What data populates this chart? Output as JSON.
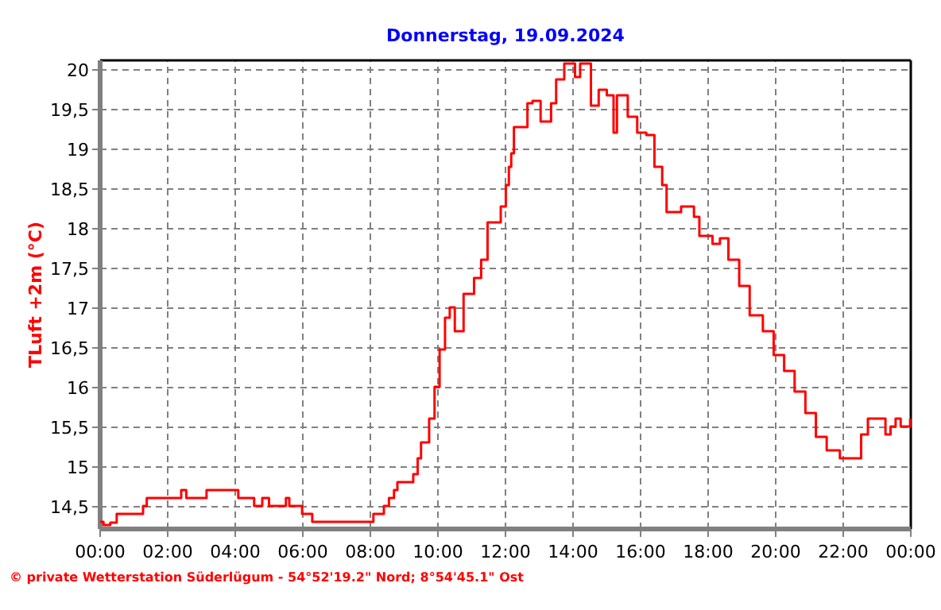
{
  "chart_data": {
    "type": "step",
    "title": "Donnerstag, 19.09.2024",
    "ylabel": "TLuft +2m  (°C)",
    "annotations": [
      "© private Wetterstation Süderlügum - 54°52'19.2\" Nord; 8°54'45.1\" Ost"
    ],
    "x": [
      0,
      0.1,
      0.3,
      0.49,
      1.27,
      1.38,
      2.4,
      2.55,
      3.15,
      4.09,
      4.56,
      4.8,
      5.0,
      5.5,
      5.6,
      5.98,
      6.28,
      8.09,
      8.4,
      8.55,
      8.7,
      8.8,
      9.27,
      9.4,
      9.5,
      9.74,
      9.9,
      10.05,
      10.21,
      10.35,
      10.5,
      10.76,
      11.07,
      11.28,
      11.47,
      11.86,
      12.01,
      12.1,
      12.17,
      12.25,
      12.65,
      12.8,
      13.04,
      13.35,
      13.5,
      13.74,
      14.06,
      14.21,
      14.53,
      14.76,
      15.0,
      15.2,
      15.3,
      15.62,
      15.9,
      16.17,
      16.41,
      16.64,
      16.77,
      17.2,
      17.58,
      17.74,
      18.13,
      18.35,
      18.6,
      18.92,
      19.23,
      19.62,
      19.94,
      20.25,
      20.56,
      20.88,
      21.19,
      21.51,
      21.9,
      22.32,
      22.53,
      22.73,
      23.1,
      23.25,
      23.4,
      23.55,
      23.7,
      23.98
    ],
    "series": [
      {
        "color": "#ff0000",
        "values": [
          14.31,
          14.27,
          14.3,
          14.41,
          14.51,
          14.61,
          14.71,
          14.61,
          14.71,
          14.61,
          14.51,
          14.61,
          14.51,
          14.61,
          14.51,
          14.41,
          14.31,
          14.41,
          14.51,
          14.61,
          14.71,
          14.81,
          14.91,
          15.11,
          15.31,
          15.61,
          16.01,
          16.48,
          16.88,
          17.01,
          16.71,
          17.18,
          17.38,
          17.61,
          18.08,
          18.28,
          18.55,
          18.78,
          18.95,
          19.28,
          19.58,
          19.61,
          19.35,
          19.58,
          19.88,
          20.08,
          19.91,
          20.08,
          19.55,
          19.75,
          19.68,
          19.21,
          19.68,
          19.41,
          19.21,
          19.18,
          18.78,
          18.55,
          18.21,
          18.28,
          18.15,
          17.91,
          17.81,
          17.88,
          17.61,
          17.28,
          16.91,
          16.71,
          16.41,
          16.21,
          15.95,
          15.68,
          15.38,
          15.21,
          15.11,
          15.11,
          15.41,
          15.61,
          15.61,
          15.41,
          15.51,
          15.61,
          15.51,
          15.61
        ]
      }
    ],
    "xlim": [
      0,
      24
    ],
    "xticks": [
      {
        "value": 0,
        "label": "00:00"
      },
      {
        "value": 2,
        "label": "02:00"
      },
      {
        "value": 4,
        "label": "04:00"
      },
      {
        "value": 6,
        "label": "06:00"
      },
      {
        "value": 8,
        "label": "08:00"
      },
      {
        "value": 10,
        "label": "10:00"
      },
      {
        "value": 12,
        "label": "12:00"
      },
      {
        "value": 14,
        "label": "14:00"
      },
      {
        "value": 16,
        "label": "16:00"
      },
      {
        "value": 18,
        "label": "18:00"
      },
      {
        "value": 20,
        "label": "20:00"
      },
      {
        "value": 22,
        "label": "22:00"
      },
      {
        "value": 24,
        "label": "00:00"
      }
    ],
    "ylim": [
      14.22,
      20.12
    ],
    "yticks": [
      {
        "value": 14.5,
        "label": "14,5"
      },
      15,
      {
        "value": 15.5,
        "label": "15,5"
      },
      16,
      {
        "value": 16.5,
        "label": "16,5"
      },
      17,
      {
        "value": 17.5,
        "label": "17,5"
      },
      18,
      {
        "value": 18.5,
        "label": "18,5"
      },
      19,
      {
        "value": 19.5,
        "label": "19,5"
      },
      20
    ],
    "grid": true,
    "marker": "none",
    "line_style": "solid"
  }
}
